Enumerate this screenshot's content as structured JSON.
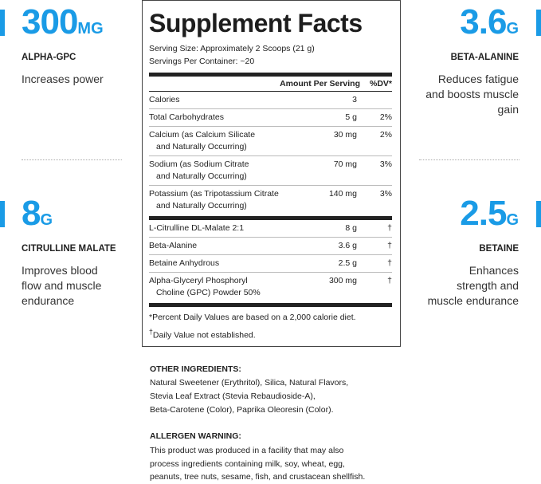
{
  "accent_color": "#1a9be6",
  "stats": [
    {
      "value": "300",
      "unit": "MG",
      "label": "ALPHA-GPC",
      "desc": [
        "Increases power"
      ]
    },
    {
      "value": "8",
      "unit": "G",
      "label": "CITRULLINE MALATE",
      "desc": [
        "Improves blood",
        "flow and muscle",
        "endurance"
      ]
    },
    {
      "value": "3.6",
      "unit": "G",
      "label": "BETA-ALANINE",
      "desc": [
        "Reduces fatigue",
        "and boosts muscle",
        "gain"
      ]
    },
    {
      "value": "2.5",
      "unit": "G",
      "label": "BETAINE",
      "desc": [
        "Enhances",
        "strength and",
        "muscle endurance"
      ]
    }
  ],
  "facts": {
    "title": "Supplement Facts",
    "serving_size": "Serving Size: Approximately 2 Scoops (21 g)",
    "servings_per_container": "Servings Per Container: ~20",
    "col_amount": "Amount Per Serving",
    "col_dv": "%DV*",
    "group1": [
      {
        "name": "Calories",
        "name2": "",
        "amount": "3",
        "dv": ""
      },
      {
        "name": "Total Carbohydrates",
        "name2": "",
        "amount": "5 g",
        "dv": "2%"
      },
      {
        "name": "Calcium (as Calcium Silicate",
        "name2": "and Naturally Occurring)",
        "amount": "30 mg",
        "dv": "2%"
      },
      {
        "name": "Sodium (as Sodium Citrate",
        "name2": "and Naturally Occurring)",
        "amount": "70 mg",
        "dv": "3%"
      },
      {
        "name": "Potassium (as Tripotassium Citrate",
        "name2": "and Naturally Occurring)",
        "amount": "140 mg",
        "dv": "3%"
      }
    ],
    "group2": [
      {
        "name": "L-Citrulline DL-Malate 2:1",
        "name2": "",
        "amount": "8 g",
        "dv": "†"
      },
      {
        "name": "Beta-Alanine",
        "name2": "",
        "amount": "3.6 g",
        "dv": "†"
      },
      {
        "name": "Betaine Anhydrous",
        "name2": "",
        "amount": "2.5 g",
        "dv": "†"
      },
      {
        "name": "Alpha-Glyceryl Phosphoryl",
        "name2": "Choline (GPC) Powder 50%",
        "amount": "300 mg",
        "dv": "†"
      }
    ],
    "footnote1": "*Percent Daily Values are based on a 2,000 calorie diet.",
    "footnote2_mark": "†",
    "footnote2": "Daily Value not established."
  },
  "other_ingredients": {
    "heading": "OTHER INGREDIENTS:",
    "lines": [
      "Natural Sweetener (Erythritol), Silica, Natural Flavors,",
      "Stevia Leaf Extract (Stevia Rebaudioside-A),",
      "Beta-Carotene (Color), Paprika Oleoresin (Color)."
    ]
  },
  "allergen": {
    "heading": "ALLERGEN WARNING:",
    "lines": [
      "This product was produced in a facility that may also",
      "process ingredients containing milk, soy, wheat, egg,",
      "peanuts, tree nuts, sesame, fish, and crustacean shellfish."
    ]
  }
}
